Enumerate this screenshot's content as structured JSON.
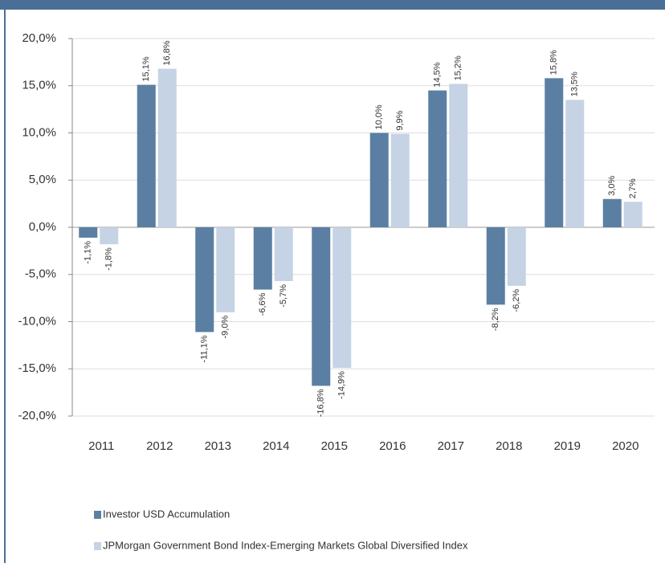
{
  "chart_data": {
    "type": "bar",
    "categories": [
      "2011",
      "2012",
      "2013",
      "2014",
      "2015",
      "2016",
      "2017",
      "2018",
      "2019",
      "2020"
    ],
    "series": [
      {
        "name": "Investor USD Accumulation",
        "color": "#5b7fa3",
        "values": [
          -1.1,
          15.1,
          -11.1,
          -6.6,
          -16.8,
          10.0,
          14.5,
          -8.2,
          15.8,
          3.0
        ],
        "value_labels": [
          "-1,1%",
          "15,1%",
          "-11,1%",
          "-6,6%",
          "-16,8%",
          "10,0%",
          "14,5%",
          "-8,2%",
          "15,8%",
          "3,0%"
        ]
      },
      {
        "name": "JPMorgan Government Bond Index-Emerging Markets Global Diversified Index",
        "color": "#c5d3e5",
        "values": [
          -1.8,
          16.8,
          -9.0,
          -5.7,
          -14.9,
          9.9,
          15.2,
          -6.2,
          13.5,
          2.7
        ],
        "value_labels": [
          "-1,8%",
          "16,8%",
          "-9,0%",
          "-5,7%",
          "-14,9%",
          "9,9%",
          "15,2%",
          "-6,2%",
          "13,5%",
          "2,7%"
        ]
      }
    ],
    "ylim": [
      -20,
      20
    ],
    "yticks": [
      {
        "value": -20,
        "label": "-20,0%"
      },
      {
        "value": -15,
        "label": "-15,0%"
      },
      {
        "value": -10,
        "label": "-10,0%"
      },
      {
        "value": -5,
        "label": "-5,0%"
      },
      {
        "value": 0,
        "label": "0,0%"
      },
      {
        "value": 5,
        "label": "5,0%"
      },
      {
        "value": 10,
        "label": "10,0%"
      },
      {
        "value": 15,
        "label": "15,0%"
      },
      {
        "value": 20,
        "label": "20,0%"
      }
    ],
    "grid": true
  }
}
